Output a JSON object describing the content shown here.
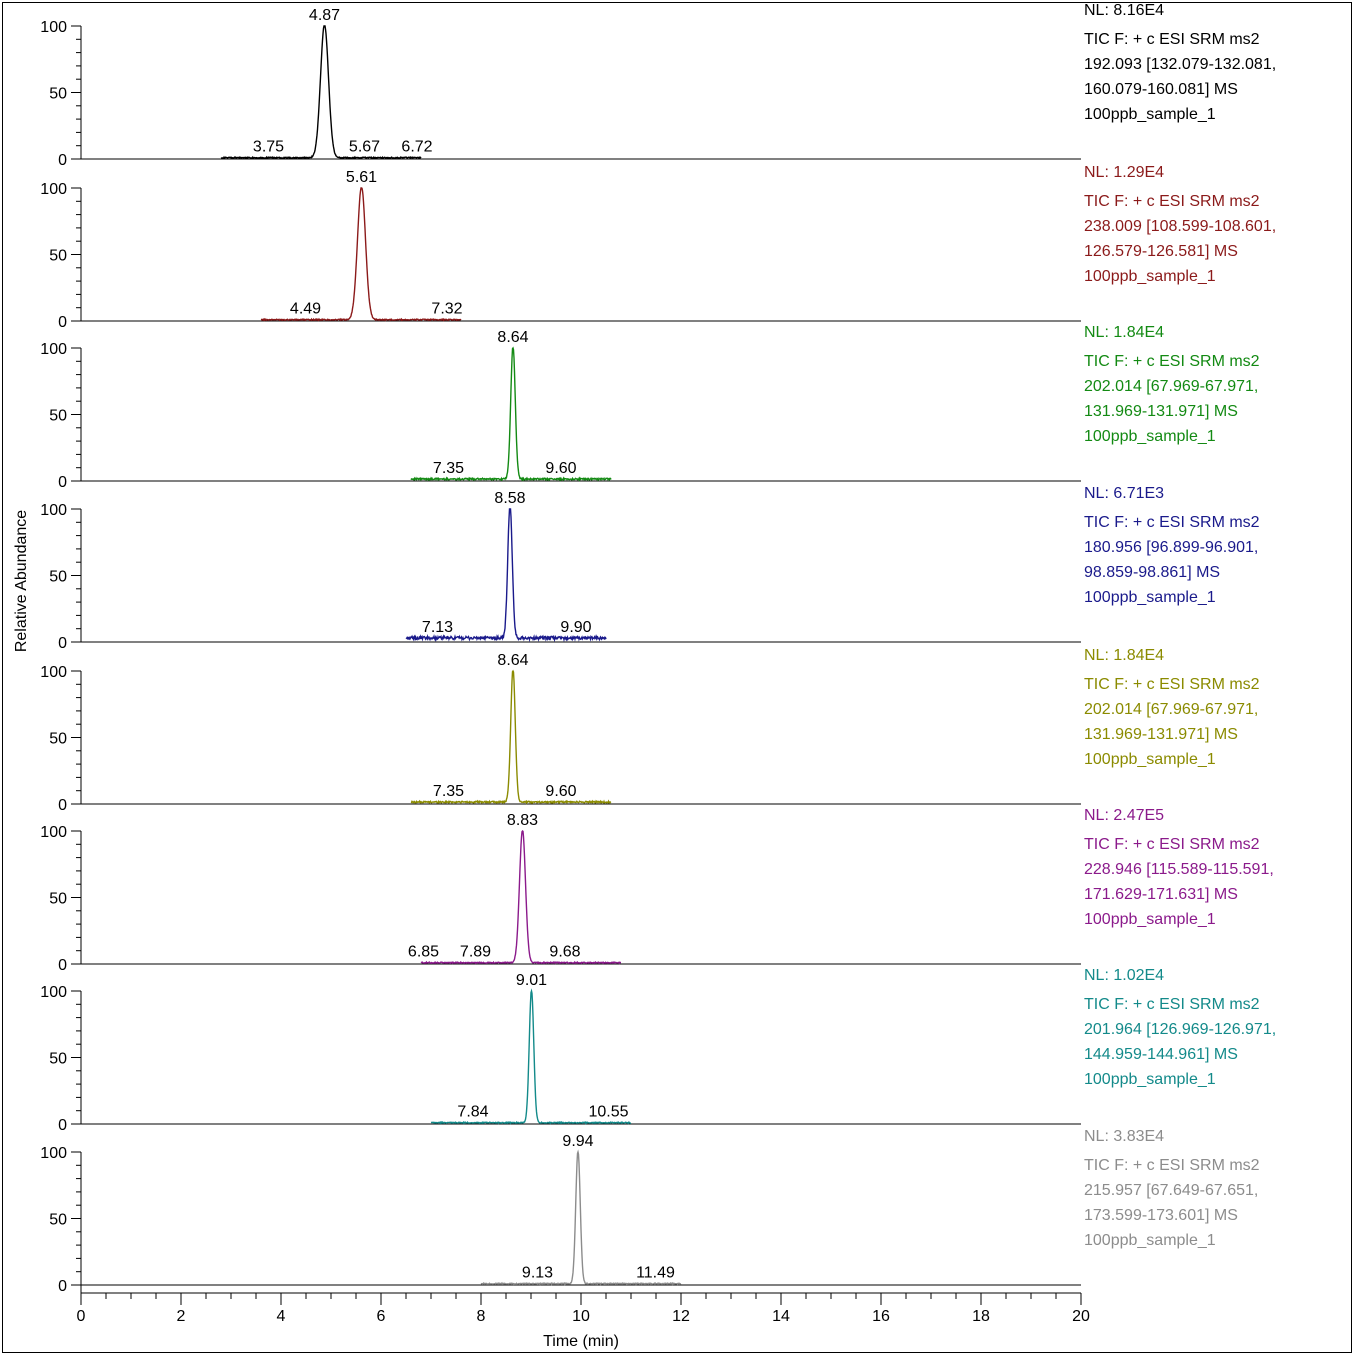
{
  "chart_data": {
    "type": "line",
    "ylabel": "Relative Abundance",
    "xlabel": "Time (min)",
    "xlim": [
      0,
      20
    ],
    "ylim": [
      0,
      100
    ],
    "x_ticks": [
      "0",
      "2",
      "4",
      "6",
      "8",
      "10",
      "12",
      "14",
      "16",
      "18",
      "20"
    ],
    "y_ticks": [
      "0",
      "50",
      "100"
    ],
    "panels": [
      {
        "color": "#000000",
        "nl": "NL: 8.16E4",
        "desc": [
          "TIC F: + c ESI SRM ms2",
          "192.093 [132.079-132.081,",
          "160.079-160.081]  MS",
          "100ppb_sample_1"
        ],
        "range": [
          2.8,
          6.8
        ],
        "peak": {
          "rt": 4.87,
          "height": 100,
          "width": 0.08
        },
        "baseline": 1,
        "labels": [
          {
            "x": 4.87,
            "y": 100,
            "text": "4.87"
          },
          {
            "x": 3.75,
            "y": 1,
            "text": "3.75"
          },
          {
            "x": 5.67,
            "y": 1,
            "text": "5.67"
          },
          {
            "x": 6.72,
            "y": 1,
            "text": "6.72"
          }
        ]
      },
      {
        "color": "#8b1a1a",
        "nl": "NL: 1.29E4",
        "desc": [
          "TIC F: + c ESI SRM ms2",
          "238.009 [108.599-108.601,",
          "126.579-126.581]  MS",
          "100ppb_sample_1"
        ],
        "range": [
          3.6,
          7.6
        ],
        "peak": {
          "rt": 5.61,
          "height": 100,
          "width": 0.08
        },
        "baseline": 1,
        "labels": [
          {
            "x": 5.61,
            "y": 100,
            "text": "5.61"
          },
          {
            "x": 4.49,
            "y": 1,
            "text": "4.49"
          },
          {
            "x": 7.32,
            "y": 1,
            "text": "7.32"
          }
        ]
      },
      {
        "color": "#138a13",
        "nl": "NL: 1.84E4",
        "desc": [
          "TIC F: + c ESI SRM ms2",
          "202.014 [67.969-67.971,",
          "131.969-131.971]  MS",
          "100ppb_sample_1"
        ],
        "range": [
          6.6,
          10.6
        ],
        "peak": {
          "rt": 8.64,
          "height": 100,
          "width": 0.045
        },
        "baseline": 1.5,
        "labels": [
          {
            "x": 8.64,
            "y": 100,
            "text": "8.64"
          },
          {
            "x": 7.35,
            "y": 1.5,
            "text": "7.35"
          },
          {
            "x": 9.6,
            "y": 1.5,
            "text": "9.60"
          }
        ]
      },
      {
        "color": "#1a1a8b",
        "nl": "NL: 6.71E3",
        "desc": [
          "TIC F: + c ESI SRM ms2",
          "180.956 [96.899-96.901,",
          "98.859-98.861]  MS",
          "100ppb_sample_1"
        ],
        "range": [
          6.5,
          10.5
        ],
        "peak": {
          "rt": 8.58,
          "height": 100,
          "width": 0.045
        },
        "baseline": 3,
        "labels": [
          {
            "x": 8.58,
            "y": 100,
            "text": "8.58"
          },
          {
            "x": 7.13,
            "y": 3,
            "text": "7.13"
          },
          {
            "x": 9.9,
            "y": 3,
            "text": "9.90"
          }
        ]
      },
      {
        "color": "#8b8b00",
        "nl": "NL: 1.84E4",
        "desc": [
          "TIC F: + c ESI SRM ms2",
          "202.014 [67.969-67.971,",
          "131.969-131.971]  MS",
          "100ppb_sample_1"
        ],
        "range": [
          6.6,
          10.6
        ],
        "peak": {
          "rt": 8.64,
          "height": 100,
          "width": 0.045
        },
        "baseline": 1.5,
        "labels": [
          {
            "x": 8.64,
            "y": 100,
            "text": "8.64"
          },
          {
            "x": 7.35,
            "y": 1.5,
            "text": "7.35"
          },
          {
            "x": 9.6,
            "y": 1.5,
            "text": "9.60"
          }
        ]
      },
      {
        "color": "#8b1a8b",
        "nl": "NL: 2.47E5",
        "desc": [
          "TIC F: + c ESI SRM ms2",
          "228.946 [115.589-115.591,",
          "171.629-171.631]  MS",
          "100ppb_sample_1"
        ],
        "range": [
          6.8,
          10.8
        ],
        "peak": {
          "rt": 8.83,
          "height": 100,
          "width": 0.06
        },
        "baseline": 1,
        "labels": [
          {
            "x": 8.83,
            "y": 100,
            "text": "8.83"
          },
          {
            "x": 6.85,
            "y": 1,
            "text": "6.85"
          },
          {
            "x": 7.89,
            "y": 1,
            "text": "7.89"
          },
          {
            "x": 9.68,
            "y": 1,
            "text": "9.68"
          }
        ]
      },
      {
        "color": "#138a8a",
        "nl": "NL: 1.02E4",
        "desc": [
          "TIC F: + c ESI SRM ms2",
          "201.964 [126.969-126.971,",
          "144.959-144.961]  MS",
          "100ppb_sample_1"
        ],
        "range": [
          7.0,
          11.0
        ],
        "peak": {
          "rt": 9.01,
          "height": 100,
          "width": 0.045
        },
        "baseline": 1,
        "labels": [
          {
            "x": 9.01,
            "y": 100,
            "text": "9.01"
          },
          {
            "x": 7.84,
            "y": 1,
            "text": "7.84"
          },
          {
            "x": 10.55,
            "y": 1,
            "text": "10.55"
          }
        ]
      },
      {
        "color": "#8c8c8c",
        "nl": "NL: 3.83E4",
        "desc": [
          "TIC F: + c ESI SRM ms2",
          "215.957 [67.649-67.651,",
          "173.599-173.601]  MS",
          "100ppb_sample_1"
        ],
        "range": [
          8.0,
          12.0
        ],
        "peak": {
          "rt": 9.94,
          "height": 100,
          "width": 0.045
        },
        "baseline": 1,
        "labels": [
          {
            "x": 9.94,
            "y": 100,
            "text": "9.94"
          },
          {
            "x": 9.13,
            "y": 1,
            "text": "9.13"
          },
          {
            "x": 11.49,
            "y": 1,
            "text": "11.49"
          }
        ]
      }
    ]
  }
}
